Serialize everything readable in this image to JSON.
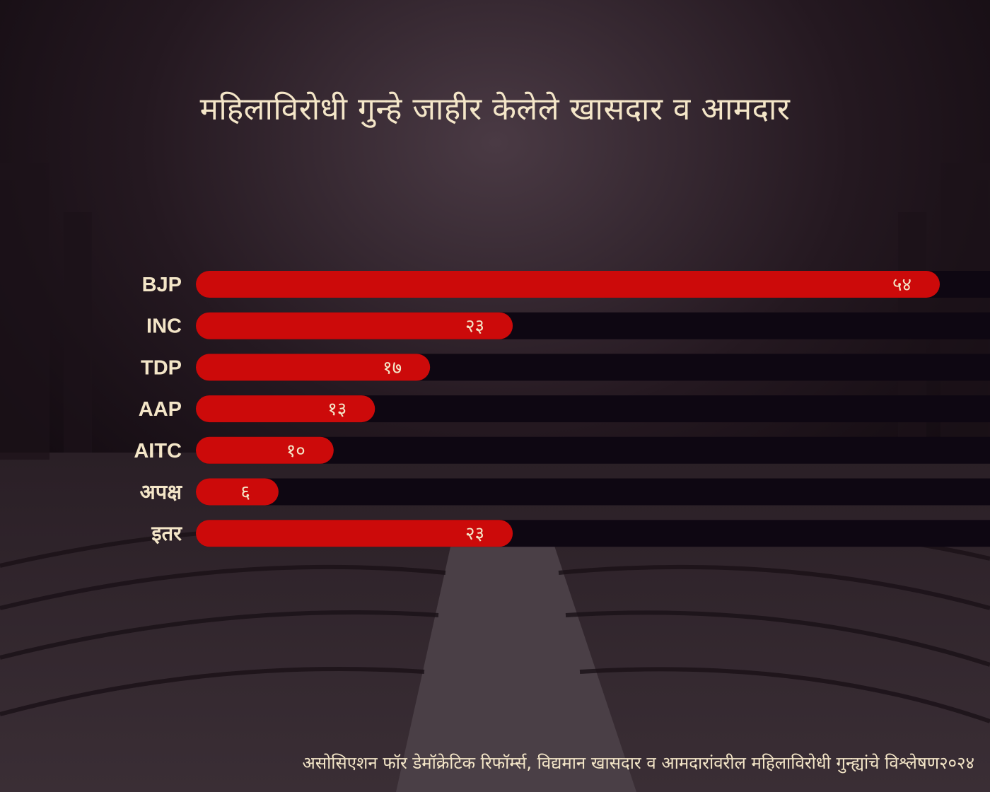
{
  "title": "महिलाविरोधी गुन्हे जाहीर केलेले खासदार व आमदार",
  "source": "असोसिएशन फॉर डेमॉक्रेटिक रिफॉर्म्स, विद्यमान खासदार व आमदारांवरील महिलाविरोधी गुन्ह्यांचे विश्लेषण२०२४",
  "colors": {
    "bar": "#cc0a0a",
    "track": "#0e0712",
    "text": "#f4e6c8",
    "background": "#2b1f27"
  },
  "chart_data": {
    "type": "bar",
    "orientation": "horizontal",
    "categories": [
      "BJP",
      "INC",
      "TDP",
      "AAP",
      "AITC",
      "अपक्ष",
      "इतर"
    ],
    "values": [
      54,
      23,
      17,
      13,
      10,
      6,
      23
    ],
    "value_labels": [
      "५४",
      "२३",
      "१७",
      "१३",
      "१०",
      "६",
      "२३"
    ],
    "xlim": [
      0,
      54
    ],
    "grid": false,
    "title": "महिलाविरोधी गुन्हे जाहीर केलेले खासदार व आमदार"
  }
}
